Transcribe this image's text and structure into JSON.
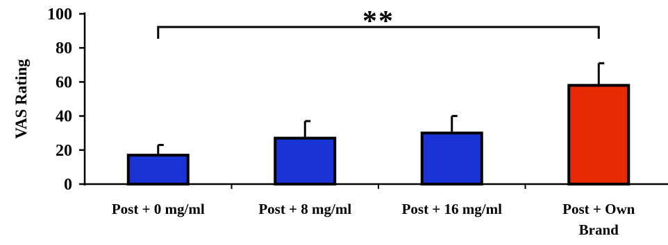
{
  "chart_data": {
    "type": "bar",
    "title": "",
    "xlabel": "",
    "ylabel": "VAS Rating",
    "ylim": [
      0,
      100
    ],
    "yticks": [
      0,
      20,
      40,
      60,
      80,
      100
    ],
    "categories": [
      "Post + 0 mg/ml",
      "Post + 8 mg/ml",
      "Post + 16 mg/ml",
      "Post + Own Brand"
    ],
    "category_label_lines": [
      [
        "Post + 0 mg/ml"
      ],
      [
        "Post + 8 mg/ml"
      ],
      [
        "Post + 16 mg/ml"
      ],
      [
        "Post + Own",
        "Brand"
      ]
    ],
    "values": [
      17,
      27,
      30,
      58
    ],
    "error_upper": [
      6,
      10,
      10,
      13
    ],
    "bar_colors": [
      "#1a33d6",
      "#1a33d6",
      "#1a33d6",
      "#e62a05"
    ],
    "significance": {
      "from": 0,
      "to": 3,
      "label": "**"
    },
    "grid": false,
    "legend": "none"
  }
}
